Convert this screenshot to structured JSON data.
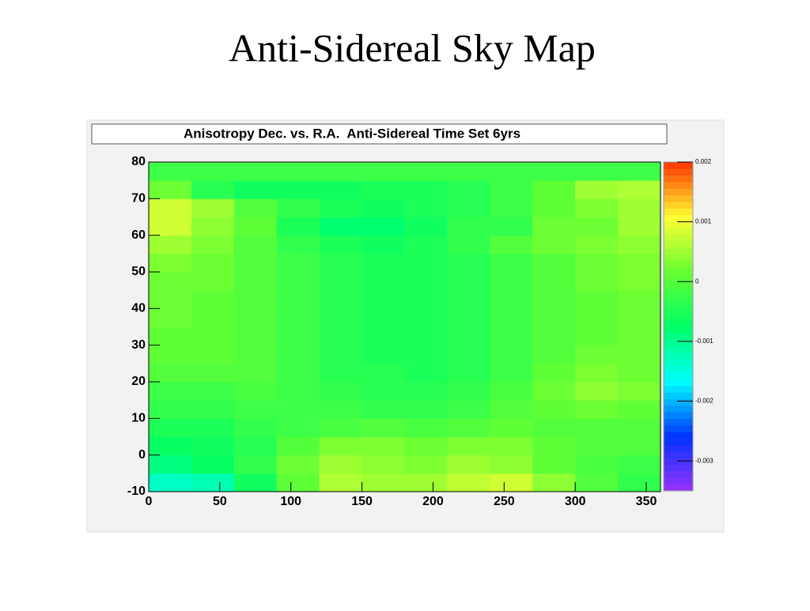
{
  "slide_title": "Anti-Sidereal Sky Map",
  "chart_data": {
    "type": "heatmap",
    "title": "Anisotropy Dec. vs. R.A.  Anti-Sidereal Time Set 6yrs",
    "x_bins": [
      0,
      30,
      60,
      90,
      120,
      150,
      180,
      210,
      240,
      270,
      300,
      330,
      360
    ],
    "y_bins": [
      -10,
      -5,
      0,
      5,
      10,
      15,
      20,
      25,
      30,
      35,
      40,
      45,
      50,
      55,
      60,
      65,
      70,
      75,
      80
    ],
    "z": [
      [
        -0.0013,
        -0.0012,
        -0.0006,
        0.0001,
        0.0006,
        0.0005,
        0.0005,
        0.0007,
        0.0008,
        0.0004,
        0,
        -0.0003
      ],
      [
        -0.0009,
        -0.0007,
        -0.0003,
        0.0002,
        0.0005,
        0.0004,
        0.0003,
        0.0005,
        0.0004,
        0.0001,
        -0.0001,
        -0.0002
      ],
      [
        -0.0007,
        -0.0006,
        -0.0004,
        0,
        0.0003,
        0.0003,
        0.0002,
        0.0003,
        0.0003,
        0.0001,
        0,
        0
      ],
      [
        -0.0005,
        -0.0005,
        -0.0003,
        -0.0002,
        -0.0001,
        0,
        -0.0001,
        0,
        0.0001,
        0,
        0,
        0
      ],
      [
        -0.0003,
        -0.0003,
        -0.0002,
        -0.0002,
        -0.0002,
        -0.0003,
        -0.0003,
        -0.0002,
        0,
        0.0001,
        0.0002,
        0.0001
      ],
      [
        -0.0002,
        -0.0002,
        -0.0001,
        -0.0002,
        -0.0003,
        -0.0004,
        -0.0004,
        -0.0003,
        -0.0001,
        0.0002,
        0.0004,
        0.0003
      ],
      [
        0,
        0,
        0,
        -0.0002,
        -0.0004,
        -0.0004,
        -0.0005,
        -0.0004,
        -0.0002,
        0.0001,
        0.0003,
        0.0002
      ],
      [
        0.0001,
        0.0001,
        0,
        -0.0002,
        -0.0004,
        -0.0005,
        -0.0005,
        -0.0004,
        -0.0002,
        0,
        0.0002,
        0.0002
      ],
      [
        0.0001,
        0.0001,
        0,
        -0.0002,
        -0.0004,
        -0.0005,
        -0.0005,
        -0.0004,
        -0.0002,
        0,
        0.0001,
        0.0002
      ],
      [
        0.0002,
        0.0001,
        0,
        -0.0002,
        -0.0004,
        -0.0005,
        -0.0005,
        -0.0004,
        -0.0002,
        0,
        0.0001,
        0.0002
      ],
      [
        0.0002,
        0.0001,
        0,
        -0.0002,
        -0.0004,
        -0.0005,
        -0.0005,
        -0.0004,
        -0.0002,
        0,
        0.0001,
        0.0002
      ],
      [
        0.0002,
        0.0002,
        0,
        -0.0002,
        -0.0004,
        -0.0005,
        -0.0005,
        -0.0004,
        -0.0002,
        0,
        0.0002,
        0.0003
      ],
      [
        0.0003,
        0.0002,
        0,
        -0.0002,
        -0.0004,
        -0.0005,
        -0.0005,
        -0.0004,
        -0.0002,
        0,
        0.0002,
        0.0003
      ],
      [
        0.0005,
        0.0003,
        0,
        -0.0003,
        -0.0005,
        -0.0006,
        -0.0005,
        -0.0003,
        0,
        0.0002,
        0.0003,
        0.0004
      ],
      [
        0.0008,
        0.0004,
        0.0001,
        -0.0005,
        -0.0008,
        -0.0008,
        -0.0006,
        -0.0003,
        -0.0003,
        0.0002,
        0.0002,
        0.0005
      ],
      [
        0.0008,
        0.0005,
        0,
        -0.0003,
        -0.0005,
        -0.0006,
        -0.0005,
        -0.0004,
        -0.0002,
        0.0001,
        0.0003,
        0.0005
      ],
      [
        0.0002,
        -0.0004,
        -0.0006,
        -0.0006,
        -0.0006,
        -0.0005,
        -0.0005,
        -0.0004,
        -0.0002,
        0.0001,
        0.0005,
        0.0006
      ],
      [
        -0.0002,
        -0.0002,
        -0.0002,
        -0.0002,
        -0.0002,
        -0.0002,
        -0.0002,
        -0.0002,
        -0.0002,
        -0.0002,
        -0.0002,
        -0.0002
      ]
    ],
    "xlim": [
      0,
      360
    ],
    "xticks": [
      0,
      50,
      100,
      150,
      200,
      250,
      300,
      350
    ],
    "ylim": [
      -10,
      80
    ],
    "yticks": [
      -10,
      0,
      10,
      20,
      30,
      40,
      50,
      60,
      70,
      80
    ],
    "zlim": [
      -0.0035,
      0.002
    ],
    "zticks": [
      0.002,
      0.001,
      0,
      -0.001,
      -0.002,
      -0.003
    ],
    "colorscale": [
      "#9933ff",
      "#0033ff",
      "#00ffff",
      "#00ff66",
      "#66ff33",
      "#ffff33",
      "#ff3300"
    ]
  }
}
